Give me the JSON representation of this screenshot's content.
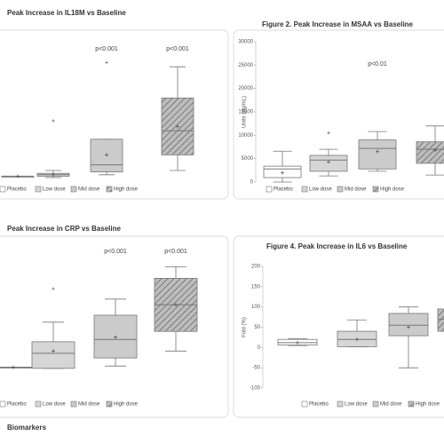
{
  "chart_data": [
    {
      "type": "box",
      "title": "Peak Increase in IL18M vs Baseline",
      "ylim": [
        0,
        100
      ],
      "series": [
        {
          "name": "Placebo",
          "color": "#ffffff",
          "min": 1,
          "q1": 1,
          "median": 1,
          "q3": 1,
          "max": 1,
          "mean": 1,
          "outliers": []
        },
        {
          "name": "Low dose",
          "color": "#d6d6d6",
          "min": 0,
          "q1": 1,
          "median": 2,
          "q3": 3,
          "max": 5,
          "mean": 2,
          "outliers": [
            40
          ]
        },
        {
          "name": "Mid dose",
          "color": "#cbcbcb",
          "min": 2,
          "q1": 4,
          "median": 9,
          "q3": 27,
          "max": 27,
          "mean": 16,
          "outliers": [
            81
          ]
        },
        {
          "name": "High dose",
          "color": "#bdbdbd",
          "hatch": true,
          "min": 5,
          "q1": 16,
          "median": 33,
          "q3": 56,
          "max": 78,
          "mean": 36,
          "outliers": []
        }
      ],
      "annotations": [
        {
          "text": "p<0.001",
          "category": "Mid dose"
        },
        {
          "text": "p<0.001",
          "category": "High dose"
        }
      ]
    },
    {
      "type": "box",
      "title": "Figure 2. Peak Increase in MSAA vs Baseline",
      "y_label": "Units (pg/mL)",
      "ylim": [
        0,
        30000
      ],
      "yticks": [
        0,
        5000,
        10000,
        15000,
        20000,
        25000,
        30000
      ],
      "series": [
        {
          "name": "Placebo",
          "color": "#ffffff",
          "min": 0,
          "q1": 950,
          "median": 2800,
          "q3": 3400,
          "max": 6600,
          "mean": 2000,
          "outliers": []
        },
        {
          "name": "Low dose",
          "color": "#d6d6d6",
          "min": 1300,
          "q1": 2300,
          "median": 4700,
          "q3": 5700,
          "max": 7000,
          "mean": 4300,
          "outliers": [
            10500
          ]
        },
        {
          "name": "Mid dose",
          "color": "#cbcbcb",
          "min": 2300,
          "q1": 2800,
          "median": 7200,
          "q3": 9000,
          "max": 10800,
          "mean": 6500,
          "outliers": []
        },
        {
          "name": "High dose",
          "color": "#bdbdbd",
          "hatch": true,
          "min": 1500,
          "q1": 4000,
          "median": 7000,
          "q3": 8600,
          "max": 12000,
          "mean": 6800,
          "outliers": []
        }
      ],
      "annotations": [
        {
          "text": "p<0.01",
          "category": "Mid dose"
        }
      ]
    },
    {
      "type": "box",
      "title": "Peak Increase in CRP vs Baseline",
      "ylim": [
        0,
        100
      ],
      "series": [
        {
          "name": "Placebo",
          "color": "#ffffff",
          "min": 5,
          "q1": 5,
          "median": 5,
          "q3": 5,
          "max": 5,
          "mean": 5,
          "outliers": []
        },
        {
          "name": "Low dose",
          "color": "#d6d6d6",
          "min": 4,
          "q1": 4,
          "median": 17,
          "q3": 27,
          "max": 44,
          "mean": 19,
          "outliers": [
            73
          ]
        },
        {
          "name": "Mid dose",
          "color": "#cbcbcb",
          "min": 6,
          "q1": 13,
          "median": 29,
          "q3": 50,
          "max": 64,
          "mean": 31,
          "outliers": []
        },
        {
          "name": "High dose",
          "color": "#bdbdbd",
          "hatch": true,
          "min": 19,
          "q1": 36,
          "median": 59,
          "q3": 82,
          "max": 92,
          "mean": 59,
          "outliers": []
        }
      ],
      "annotations": [
        {
          "text": "p<0.001",
          "category": "Mid dose"
        },
        {
          "text": "p<0.001",
          "category": "High dose"
        }
      ]
    },
    {
      "type": "box",
      "title": "Figure 4. Peak Increase in IL6 vs Baseline",
      "y_label": "Fold (%)",
      "ylim": [
        -100,
        200
      ],
      "yticks": [
        -100,
        -50,
        0,
        50,
        100,
        150,
        200
      ],
      "series": [
        {
          "name": "Placebo",
          "color": "#ffffff",
          "min": 5,
          "q1": 6,
          "median": 12,
          "q3": 20,
          "max": 22,
          "mean": 12,
          "outliers": []
        },
        {
          "name": "Low dose",
          "color": "#d6d6d6",
          "min": 2,
          "q1": 2,
          "median": 20,
          "q3": 40,
          "max": 68,
          "mean": 20,
          "outliers": []
        },
        {
          "name": "Mid dose",
          "color": "#cbcbcb",
          "min": -50,
          "q1": 29,
          "median": 55,
          "q3": 84,
          "max": 100,
          "mean": 50,
          "outliers": []
        },
        {
          "name": "High dose",
          "color": "#bdbdbd",
          "hatch": true,
          "min": 10,
          "q1": 40,
          "median": 70,
          "q3": 95,
          "max": 110,
          "mean": 70,
          "outliers": []
        }
      ],
      "annotations": []
    }
  ],
  "footer": "Biomarkers"
}
